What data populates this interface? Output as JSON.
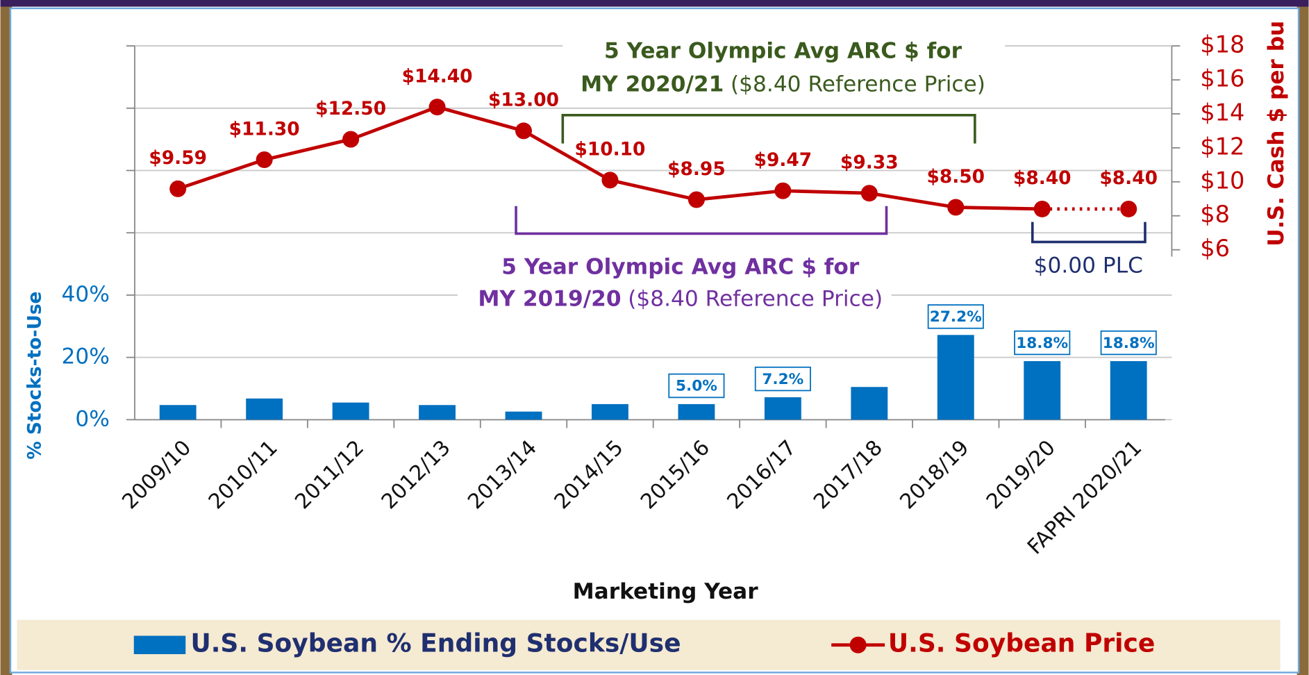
{
  "chart_data": {
    "type": "bar-line",
    "x_label": "Marketing Year",
    "y_label": "% Stocks-to-Use",
    "y2_label": "U.S. Cash $ per bu",
    "categories": [
      "2009/10",
      "2010/11",
      "2011/12",
      "2012/13",
      "2013/14",
      "2014/15",
      "2015/16",
      "2016/17",
      "2017/18",
      "2018/19",
      "2019/20",
      "FAPRI 2020/21"
    ],
    "series": [
      {
        "name": "U.S. Soybean % Ending Stocks/Use",
        "type": "bar",
        "color": "#0070c0",
        "values": [
          4.7,
          6.8,
          5.5,
          4.7,
          2.6,
          5.0,
          5.0,
          7.2,
          10.5,
          27.2,
          18.8,
          18.8
        ],
        "value_labels": [
          null,
          null,
          null,
          null,
          null,
          null,
          "5.0%",
          "7.2%",
          null,
          "27.2%",
          "18.8%",
          "18.8%"
        ]
      },
      {
        "name": "U.S. Soybean Price",
        "type": "line",
        "axis": "y2",
        "color": "#c00000",
        "values": [
          9.59,
          11.3,
          12.5,
          14.4,
          13.0,
          10.1,
          8.95,
          9.47,
          9.33,
          8.5,
          8.4,
          8.4
        ],
        "value_labels": [
          "$9.59",
          "$11.30",
          "$12.50",
          "$14.40",
          "$13.00",
          "$10.10",
          "$8.95",
          "$9.47",
          "$9.33",
          "$8.50",
          "$8.40",
          "$8.40"
        ]
      }
    ],
    "ylim": [
      0,
      120
    ],
    "yticks": [
      {
        "value": 0,
        "label": "0%"
      },
      {
        "value": 20,
        "label": "20%"
      },
      {
        "value": 40,
        "label": "40%"
      },
      {
        "value": 60,
        "label": null
      },
      {
        "value": 80,
        "label": null
      },
      {
        "value": 100,
        "label": null
      },
      {
        "value": 120,
        "label": null
      }
    ],
    "y2lim": [
      -4,
      18
    ],
    "y2ticks": [
      {
        "value": 6,
        "label": "$6"
      },
      {
        "value": 8,
        "label": "$8"
      },
      {
        "value": 10,
        "label": "$10"
      },
      {
        "value": 12,
        "label": "$12"
      },
      {
        "value": 14,
        "label": "$14"
      },
      {
        "value": 16,
        "label": "$16"
      },
      {
        "value": 18,
        "label": "$18"
      }
    ],
    "grid": true,
    "annotations": [
      {
        "line1": "5 Year Olympic Avg ARC $ for",
        "line2_bold": "MY 2020/21",
        "line2": "($8.40 Reference Price)",
        "color": "#3a5a1e"
      },
      {
        "line1": "5 Year Olympic Avg ARC $ for",
        "line2_bold": "MY 2019/20",
        "line2": "($8.40 Reference Price)",
        "color": "#7030a0"
      },
      {
        "text": "$0.00 PLC",
        "color": "#1f2f6f"
      }
    ]
  }
}
